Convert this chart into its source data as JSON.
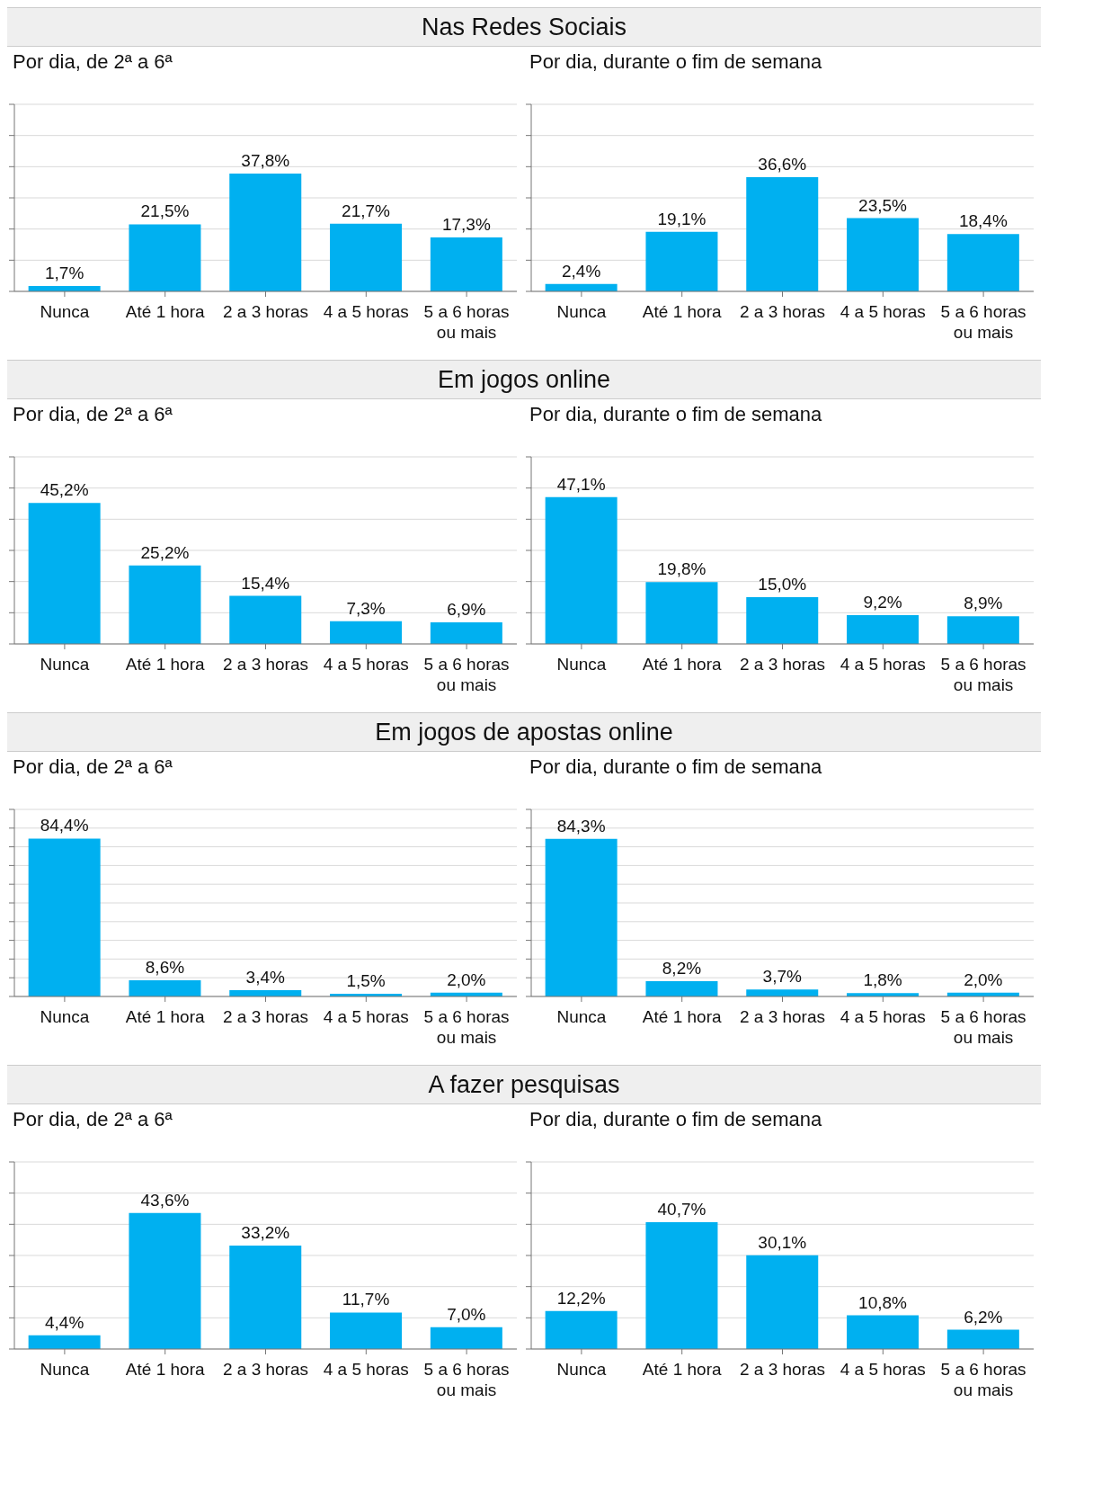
{
  "chart_data": [
    {
      "type": "bar",
      "title": "Nas Redes Sociais",
      "subtitle": "Por dia, de 2ª a 6ª",
      "categories": [
        "Nunca",
        "Até 1 hora",
        "2 a 3 horas",
        "4 a 5 horas",
        "5 a 6 horas ou mais"
      ],
      "values": [
        1.7,
        21.5,
        37.8,
        21.7,
        17.3
      ],
      "value_labels": [
        "1,7%",
        "21,5%",
        "37,8%",
        "21,7%",
        "17,3%"
      ],
      "color": "#00b0f0",
      "ylim": [
        0,
        60
      ],
      "yticks": [
        {
          "value": 0,
          "label": null
        },
        {
          "value": 10,
          "label": null
        },
        {
          "value": 20,
          "label": null
        },
        {
          "value": 30,
          "label": null
        },
        {
          "value": 40,
          "label": null
        },
        {
          "value": 50,
          "label": null
        },
        {
          "value": 60,
          "label": null
        }
      ],
      "grid": "y",
      "tick_labels": "x"
    },
    {
      "type": "bar",
      "subtitle": "Por dia, durante o fim de semana",
      "categories": [
        "Nunca",
        "Até 1 hora",
        "2 a 3 horas",
        "4 a 5 horas",
        "5 a 6 horas ou mais"
      ],
      "values": [
        2.4,
        19.1,
        36.6,
        23.5,
        18.4
      ],
      "value_labels": [
        "2,4%",
        "19,1%",
        "36,6%",
        "23,5%",
        "18,4%"
      ],
      "color": "#00b0f0",
      "ylim": [
        0,
        60
      ],
      "yticks": [
        {
          "value": 0,
          "label": null
        },
        {
          "value": 10,
          "label": null
        },
        {
          "value": 20,
          "label": null
        },
        {
          "value": 30,
          "label": null
        },
        {
          "value": 40,
          "label": null
        },
        {
          "value": 50,
          "label": null
        },
        {
          "value": 60,
          "label": null
        }
      ],
      "grid": "y",
      "tick_labels": "x"
    },
    {
      "type": "bar",
      "title": "Em jogos online",
      "subtitle": "Por dia, de 2ª a 6ª",
      "categories": [
        "Nunca",
        "Até 1 hora",
        "2 a 3 horas",
        "4 a 5 horas",
        "5 a 6 horas ou mais"
      ],
      "values": [
        45.2,
        25.2,
        15.4,
        7.3,
        6.9
      ],
      "value_labels": [
        "45,2%",
        "25,2%",
        "15,4%",
        "7,3%",
        "6,9%"
      ],
      "color": "#00b0f0",
      "ylim": [
        0,
        60
      ],
      "yticks": [
        {
          "value": 0,
          "label": null
        },
        {
          "value": 10,
          "label": null
        },
        {
          "value": 20,
          "label": null
        },
        {
          "value": 30,
          "label": null
        },
        {
          "value": 40,
          "label": null
        },
        {
          "value": 50,
          "label": null
        },
        {
          "value": 60,
          "label": null
        }
      ],
      "grid": "y",
      "tick_labels": "x"
    },
    {
      "type": "bar",
      "subtitle": "Por dia, durante o fim de semana",
      "categories": [
        "Nunca",
        "Até 1 hora",
        "2 a 3 horas",
        "4 a 5 horas",
        "5 a 6 horas ou mais"
      ],
      "values": [
        47.1,
        19.8,
        15.0,
        9.2,
        8.9
      ],
      "value_labels": [
        "47,1%",
        "19,8%",
        "15,0%",
        "9,2%",
        "8,9%"
      ],
      "color": "#00b0f0",
      "ylim": [
        0,
        60
      ],
      "yticks": [
        {
          "value": 0,
          "label": null
        },
        {
          "value": 10,
          "label": null
        },
        {
          "value": 20,
          "label": null
        },
        {
          "value": 30,
          "label": null
        },
        {
          "value": 40,
          "label": null
        },
        {
          "value": 50,
          "label": null
        },
        {
          "value": 60,
          "label": null
        }
      ],
      "grid": "y",
      "tick_labels": "x"
    },
    {
      "type": "bar",
      "title": "Em jogos de apostas online",
      "subtitle": "Por dia, de 2ª a 6ª",
      "categories": [
        "Nunca",
        "Até 1 hora",
        "2 a 3 horas",
        "4 a 5 horas",
        "5 a 6 horas ou mais"
      ],
      "values": [
        84.4,
        8.6,
        3.4,
        1.5,
        2.0
      ],
      "value_labels": [
        "84,4%",
        "8,6%",
        "3,4%",
        "1,5%",
        "2,0%"
      ],
      "color": "#00b0f0",
      "ylim": [
        0,
        100
      ],
      "yticks": [
        {
          "value": 0,
          "label": null
        },
        {
          "value": 10,
          "label": null
        },
        {
          "value": 20,
          "label": null
        },
        {
          "value": 30,
          "label": null
        },
        {
          "value": 40,
          "label": null
        },
        {
          "value": 50,
          "label": null
        },
        {
          "value": 60,
          "label": null
        },
        {
          "value": 70,
          "label": null
        },
        {
          "value": 80,
          "label": null
        },
        {
          "value": 90,
          "label": null
        },
        {
          "value": 100,
          "label": null
        }
      ],
      "grid": "y",
      "tick_labels": "x"
    },
    {
      "type": "bar",
      "subtitle": "Por dia, durante o fim de semana",
      "categories": [
        "Nunca",
        "Até 1 hora",
        "2 a 3 horas",
        "4 a 5 horas",
        "5 a 6 horas ou mais"
      ],
      "values": [
        84.3,
        8.2,
        3.7,
        1.8,
        2.0
      ],
      "value_labels": [
        "84,3%",
        "8,2%",
        "3,7%",
        "1,8%",
        "2,0%"
      ],
      "color": "#00b0f0",
      "ylim": [
        0,
        100
      ],
      "yticks": [
        {
          "value": 0,
          "label": null
        },
        {
          "value": 10,
          "label": null
        },
        {
          "value": 20,
          "label": null
        },
        {
          "value": 30,
          "label": null
        },
        {
          "value": 40,
          "label": null
        },
        {
          "value": 50,
          "label": null
        },
        {
          "value": 60,
          "label": null
        },
        {
          "value": 70,
          "label": null
        },
        {
          "value": 80,
          "label": null
        },
        {
          "value": 90,
          "label": null
        },
        {
          "value": 100,
          "label": null
        }
      ],
      "grid": "y",
      "tick_labels": "x"
    },
    {
      "type": "bar",
      "title": "A fazer pesquisas",
      "subtitle": "Por dia, de 2ª a 6ª",
      "categories": [
        "Nunca",
        "Até 1 hora",
        "2 a 3 horas",
        "4 a 5 horas",
        "5 a 6 horas ou mais"
      ],
      "values": [
        4.4,
        43.6,
        33.2,
        11.7,
        7.0
      ],
      "value_labels": [
        "4,4%",
        "43,6%",
        "33,2%",
        "11,7%",
        "7,0%"
      ],
      "color": "#00b0f0",
      "ylim": [
        0,
        60
      ],
      "yticks": [
        {
          "value": 0,
          "label": null
        },
        {
          "value": 10,
          "label": null
        },
        {
          "value": 20,
          "label": null
        },
        {
          "value": 30,
          "label": null
        },
        {
          "value": 40,
          "label": null
        },
        {
          "value": 50,
          "label": null
        },
        {
          "value": 60,
          "label": null
        }
      ],
      "grid": "y",
      "tick_labels": "x"
    },
    {
      "type": "bar",
      "subtitle": "Por dia, durante o fim de semana",
      "categories": [
        "Nunca",
        "Até 1 hora",
        "2 a 3 horas",
        "4 a 5 horas",
        "5 a 6 horas ou mais"
      ],
      "values": [
        12.2,
        40.7,
        30.1,
        10.8,
        6.2
      ],
      "value_labels": [
        "12,2%",
        "40,7%",
        "30,1%",
        "10,8%",
        "6,2%"
      ],
      "color": "#00b0f0",
      "ylim": [
        0,
        60
      ],
      "yticks": [
        {
          "value": 0,
          "label": null
        },
        {
          "value": 10,
          "label": null
        },
        {
          "value": 20,
          "label": null
        },
        {
          "value": 30,
          "label": null
        },
        {
          "value": 40,
          "label": null
        },
        {
          "value": 50,
          "label": null
        },
        {
          "value": 60,
          "label": null
        }
      ],
      "grid": "y",
      "tick_labels": "x"
    }
  ]
}
